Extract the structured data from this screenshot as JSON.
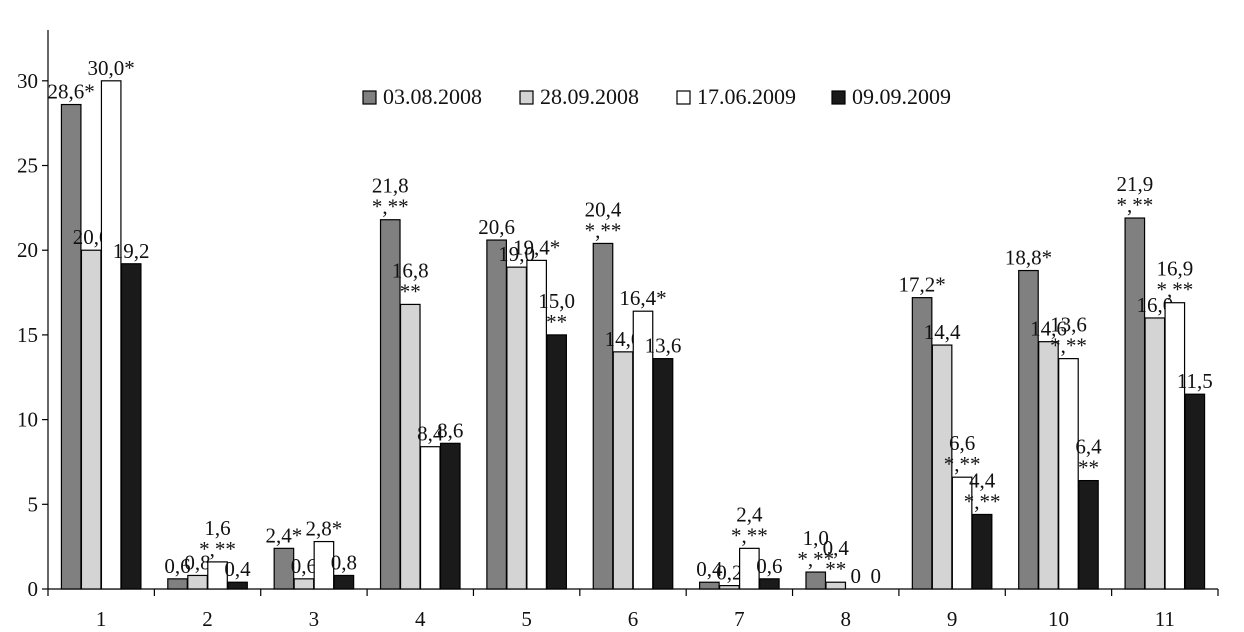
{
  "chart_data": {
    "type": "bar",
    "title": "",
    "xlabel": "",
    "ylabel": "",
    "ylim": [
      0,
      33
    ],
    "yticks": [
      0,
      5,
      10,
      15,
      20,
      25,
      30
    ],
    "grid": false,
    "legend_position": "top-center",
    "categories": [
      "1",
      "2",
      "3",
      "4",
      "5",
      "6",
      "7",
      "8",
      "9",
      "10",
      "11"
    ],
    "series": [
      {
        "name": "03.08.2008",
        "color": "#808080",
        "values": [
          28.6,
          0.6,
          2.4,
          21.8,
          20.6,
          20.4,
          0.4,
          1.0,
          17.2,
          18.8,
          21.9
        ],
        "labels": [
          [
            "28,6*"
          ],
          [
            "0,6"
          ],
          [
            "2,4*"
          ],
          [
            "21,8",
            "*,**"
          ],
          [
            "20,6"
          ],
          [
            "20,4",
            "*,**"
          ],
          [
            "0,4"
          ],
          [
            "1,0",
            "*,**"
          ],
          [
            "17,2*"
          ],
          [
            "18,8*"
          ],
          [
            "21,9",
            "*,**"
          ]
        ]
      },
      {
        "name": "28.09.2008",
        "color": "#d4d4d4",
        "values": [
          20.0,
          0.8,
          0.6,
          16.8,
          19.0,
          14.0,
          0.2,
          0.4,
          14.4,
          14.6,
          16.0
        ],
        "labels": [
          [
            "20,0"
          ],
          [
            "0,8"
          ],
          [
            "0,6"
          ],
          [
            "16,8",
            "**"
          ],
          [
            "19,0"
          ],
          [
            "14,0"
          ],
          [
            "0,2"
          ],
          [
            "0,4",
            "**"
          ],
          [
            "14,4"
          ],
          [
            "14,6"
          ],
          [
            "16,0"
          ]
        ]
      },
      {
        "name": "17.06.2009",
        "color": "#ffffff",
        "values": [
          30.0,
          1.6,
          2.8,
          8.4,
          19.4,
          16.4,
          2.4,
          0,
          6.6,
          13.6,
          16.9
        ],
        "labels": [
          [
            "30,0*"
          ],
          [
            "1,6",
            "*,**"
          ],
          [
            "2,8*"
          ],
          [
            "8,4"
          ],
          [
            "19,4*"
          ],
          [
            "16,4*"
          ],
          [
            "2,4",
            "*,**"
          ],
          [
            "0"
          ],
          [
            "6,6",
            "*,**"
          ],
          [
            "13,6",
            "*,**"
          ],
          [
            "16,9",
            "*,**"
          ]
        ]
      },
      {
        "name": "09.09.2009",
        "color": "#1a1a1a",
        "values": [
          19.2,
          0.4,
          0.8,
          8.6,
          15.0,
          13.6,
          0.6,
          0,
          4.4,
          6.4,
          11.5
        ],
        "labels": [
          [
            "19,2"
          ],
          [
            "0,4"
          ],
          [
            "0,8"
          ],
          [
            "8,6"
          ],
          [
            "15,0",
            "**"
          ],
          [
            "13,6"
          ],
          [
            "0,6"
          ],
          [
            "0"
          ],
          [
            "4,4",
            "*,**"
          ],
          [
            "6,4",
            "**"
          ],
          [
            "11,5"
          ]
        ]
      }
    ]
  }
}
